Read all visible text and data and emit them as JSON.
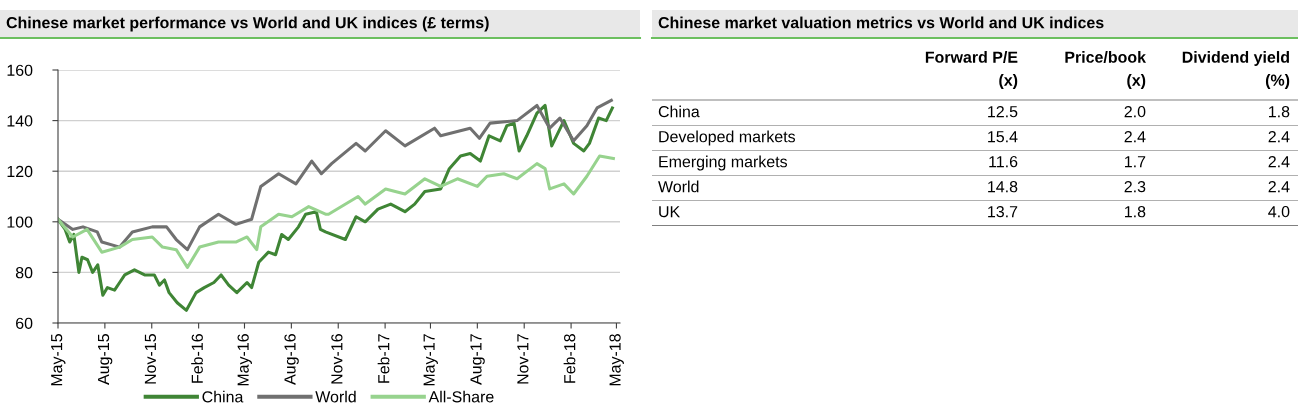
{
  "chart_data": [
    {
      "type": "line",
      "title": "Chinese market performance vs World and UK indices (£ terms)",
      "xlim": [
        "2015-05-01",
        "2018-05-08"
      ],
      "xticks": [
        {
          "value": "2015-05-01",
          "label": "May-15"
        },
        {
          "value": "2015-08-01",
          "label": "Aug-15"
        },
        {
          "value": "2015-11-01",
          "label": "Nov-15"
        },
        {
          "value": "2016-02-01",
          "label": "Feb-16"
        },
        {
          "value": "2016-05-01",
          "label": "May-16"
        },
        {
          "value": "2016-08-01",
          "label": "Aug-16"
        },
        {
          "value": "2016-11-01",
          "label": "Nov-16"
        },
        {
          "value": "2017-02-01",
          "label": "Feb-17"
        },
        {
          "value": "2017-05-01",
          "label": "May-17"
        },
        {
          "value": "2017-08-01",
          "label": "Aug-17"
        },
        {
          "value": "2017-11-01",
          "label": "Nov-17"
        },
        {
          "value": "2018-02-01",
          "label": "Feb-18"
        },
        {
          "value": "2018-05-01",
          "label": "May-18"
        }
      ],
      "ylim": [
        60,
        160
      ],
      "yticks": [
        60,
        80,
        100,
        120,
        140,
        160
      ],
      "grid": "y",
      "legend": "bottom",
      "marker": "none",
      "line_style": "solid",
      "series": [
        {
          "name": "China",
          "color": "#3f8535",
          "x": [
            "2015-05-01",
            "2015-05-15",
            "2015-05-24",
            "2015-06-01",
            "2015-06-11",
            "2015-06-17",
            "2015-06-28",
            "2015-07-08",
            "2015-07-18",
            "2015-07-28",
            "2015-08-06",
            "2015-08-20",
            "2015-08-30",
            "2015-09-09",
            "2015-09-28",
            "2015-10-18",
            "2015-11-06",
            "2015-11-16",
            "2015-11-26",
            "2015-12-05",
            "2015-12-21",
            "2016-01-08",
            "2016-01-27",
            "2016-02-12",
            "2016-03-02",
            "2016-03-16",
            "2016-03-31",
            "2016-04-16",
            "2016-05-06",
            "2016-05-15",
            "2016-05-29",
            "2016-06-17",
            "2016-07-01",
            "2016-07-13",
            "2016-07-26",
            "2016-08-15",
            "2016-08-29",
            "2016-09-19",
            "2016-09-27",
            "2016-10-07",
            "2016-11-15",
            "2016-12-06",
            "2016-12-24",
            "2017-01-18",
            "2017-02-12",
            "2017-03-12",
            "2017-03-31",
            "2017-04-20",
            "2017-05-21",
            "2017-06-07",
            "2017-06-29",
            "2017-07-18",
            "2017-08-07",
            "2017-08-24",
            "2017-09-15",
            "2017-09-28",
            "2017-10-12",
            "2017-10-22",
            "2017-11-06",
            "2017-11-26",
            "2017-12-12",
            "2017-12-25",
            "2018-01-18",
            "2018-02-06",
            "2018-02-26",
            "2018-03-09",
            "2018-03-27",
            "2018-04-11",
            "2018-04-23"
          ],
          "values": [
            101,
            97,
            92,
            95,
            80,
            86,
            85,
            80,
            83,
            71,
            74,
            73,
            76,
            79,
            81,
            79,
            79,
            75,
            77,
            72,
            68,
            65,
            72,
            74,
            76,
            79,
            75,
            72,
            76,
            74,
            84,
            88,
            87,
            95,
            93,
            98,
            103,
            104,
            97,
            96,
            93,
            102,
            100,
            105,
            107,
            104,
            107,
            112,
            113,
            121,
            126,
            127,
            124,
            134,
            132,
            138,
            139,
            128,
            134,
            143,
            146,
            130,
            140,
            131,
            128,
            131,
            141,
            140,
            145
          ]
        },
        {
          "name": "World",
          "color": "#707070",
          "x": [
            "2015-05-01",
            "2015-05-30",
            "2015-06-19",
            "2015-07-17",
            "2015-07-26",
            "2015-08-30",
            "2015-09-24",
            "2015-11-02",
            "2015-11-30",
            "2015-12-19",
            "2016-01-10",
            "2016-02-03",
            "2016-03-11",
            "2016-04-14",
            "2016-05-15",
            "2016-06-02",
            "2016-07-07",
            "2016-08-10",
            "2016-09-10",
            "2016-09-29",
            "2016-10-19",
            "2016-12-06",
            "2016-12-24",
            "2017-02-02",
            "2017-03-12",
            "2017-05-09",
            "2017-05-21",
            "2017-07-18",
            "2017-08-05",
            "2017-08-26",
            "2017-10-18",
            "2017-11-26",
            "2017-12-21",
            "2018-01-10",
            "2018-02-06",
            "2018-03-04",
            "2018-03-24",
            "2018-04-21"
          ],
          "values": [
            101,
            97,
            98,
            96,
            92,
            90,
            96,
            98,
            98,
            93,
            89,
            98,
            103,
            99,
            101,
            114,
            119,
            115,
            124,
            119,
            123,
            131,
            128,
            136,
            130,
            137,
            134,
            137,
            133,
            139,
            140,
            146,
            137,
            141,
            132,
            138,
            145,
            148
          ]
        },
        {
          "name": "All-Share",
          "color": "#97d38e",
          "x": [
            "2015-05-01",
            "2015-05-30",
            "2015-06-27",
            "2015-07-26",
            "2015-08-30",
            "2015-09-24",
            "2015-11-02",
            "2015-11-22",
            "2015-12-19",
            "2016-01-10",
            "2016-02-03",
            "2016-03-11",
            "2016-04-14",
            "2016-05-06",
            "2016-05-25",
            "2016-06-02",
            "2016-07-07",
            "2016-08-02",
            "2016-09-04",
            "2016-10-07",
            "2016-10-13",
            "2016-12-10",
            "2016-12-24",
            "2017-02-02",
            "2017-03-12",
            "2017-04-20",
            "2017-05-21",
            "2017-06-23",
            "2017-08-01",
            "2017-08-20",
            "2017-09-22",
            "2017-10-18",
            "2017-11-26",
            "2017-12-12",
            "2017-12-21",
            "2018-01-18",
            "2018-02-06",
            "2018-03-04",
            "2018-03-29",
            "2018-04-25"
          ],
          "values": [
            101,
            94,
            97,
            88,
            90,
            93,
            94,
            90,
            89,
            82,
            90,
            92,
            92,
            94,
            89,
            98,
            103,
            102,
            106,
            103,
            103,
            110,
            107,
            113,
            111,
            117,
            114,
            117,
            114,
            118,
            119,
            117,
            123,
            121,
            113,
            115,
            111,
            118,
            126,
            125
          ]
        }
      ]
    },
    {
      "type": "other",
      "title": "Chinese market valuation metrics vs World and UK indices",
      "categories": [
        "Forward P/E\n(x)",
        "Price/book\n(x)",
        "Dividend yield\n(%)"
      ],
      "y_categories": [
        "China",
        "Developed markets",
        "Emerging markets",
        "World",
        "UK"
      ],
      "cell_labels": [
        [
          "12.5",
          "2.0",
          "1.8"
        ],
        [
          "15.4",
          "2.4",
          "2.4"
        ],
        [
          "11.6",
          "1.7",
          "2.4"
        ],
        [
          "14.8",
          "2.3",
          "2.4"
        ],
        [
          "13.7",
          "1.8",
          "4.0"
        ]
      ]
    }
  ]
}
